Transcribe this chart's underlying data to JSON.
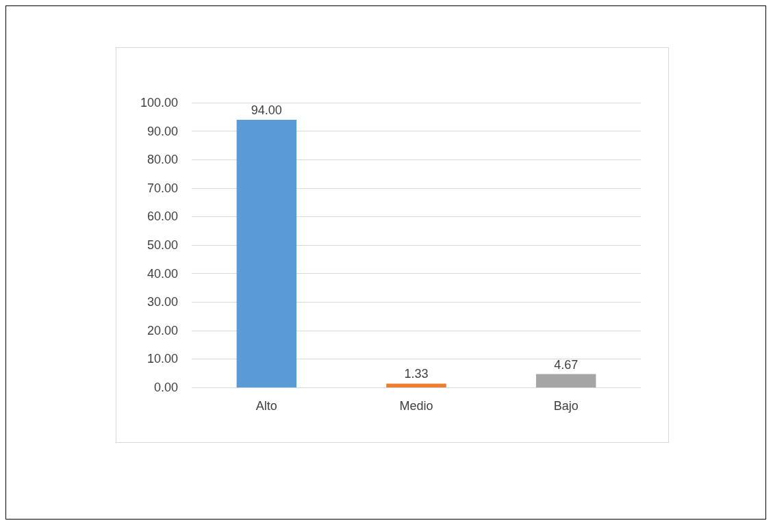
{
  "chart_data": {
    "type": "bar",
    "categories": [
      "Alto",
      "Medio",
      "Bajo"
    ],
    "values": [
      94,
      1.33,
      4.67
    ],
    "colors": [
      "#5b9bd5",
      "#ed7d31",
      "#a5a5a5"
    ],
    "value_labels": [
      "94.00",
      "1.33",
      "4.67"
    ],
    "ylim": [
      0,
      100
    ],
    "yticks": [
      {
        "value": 0,
        "label": "0.00"
      },
      {
        "value": 10,
        "label": "10.00"
      },
      {
        "value": 20,
        "label": "20.00"
      },
      {
        "value": 30,
        "label": "30.00"
      },
      {
        "value": 40,
        "label": "40.00"
      },
      {
        "value": 50,
        "label": "50.00"
      },
      {
        "value": 60,
        "label": "60.00"
      },
      {
        "value": 70,
        "label": "70.00"
      },
      {
        "value": 80,
        "label": "80.00"
      },
      {
        "value": 90,
        "label": "90.00"
      },
      {
        "value": 100,
        "label": "100.00"
      }
    ],
    "grid": "y"
  }
}
